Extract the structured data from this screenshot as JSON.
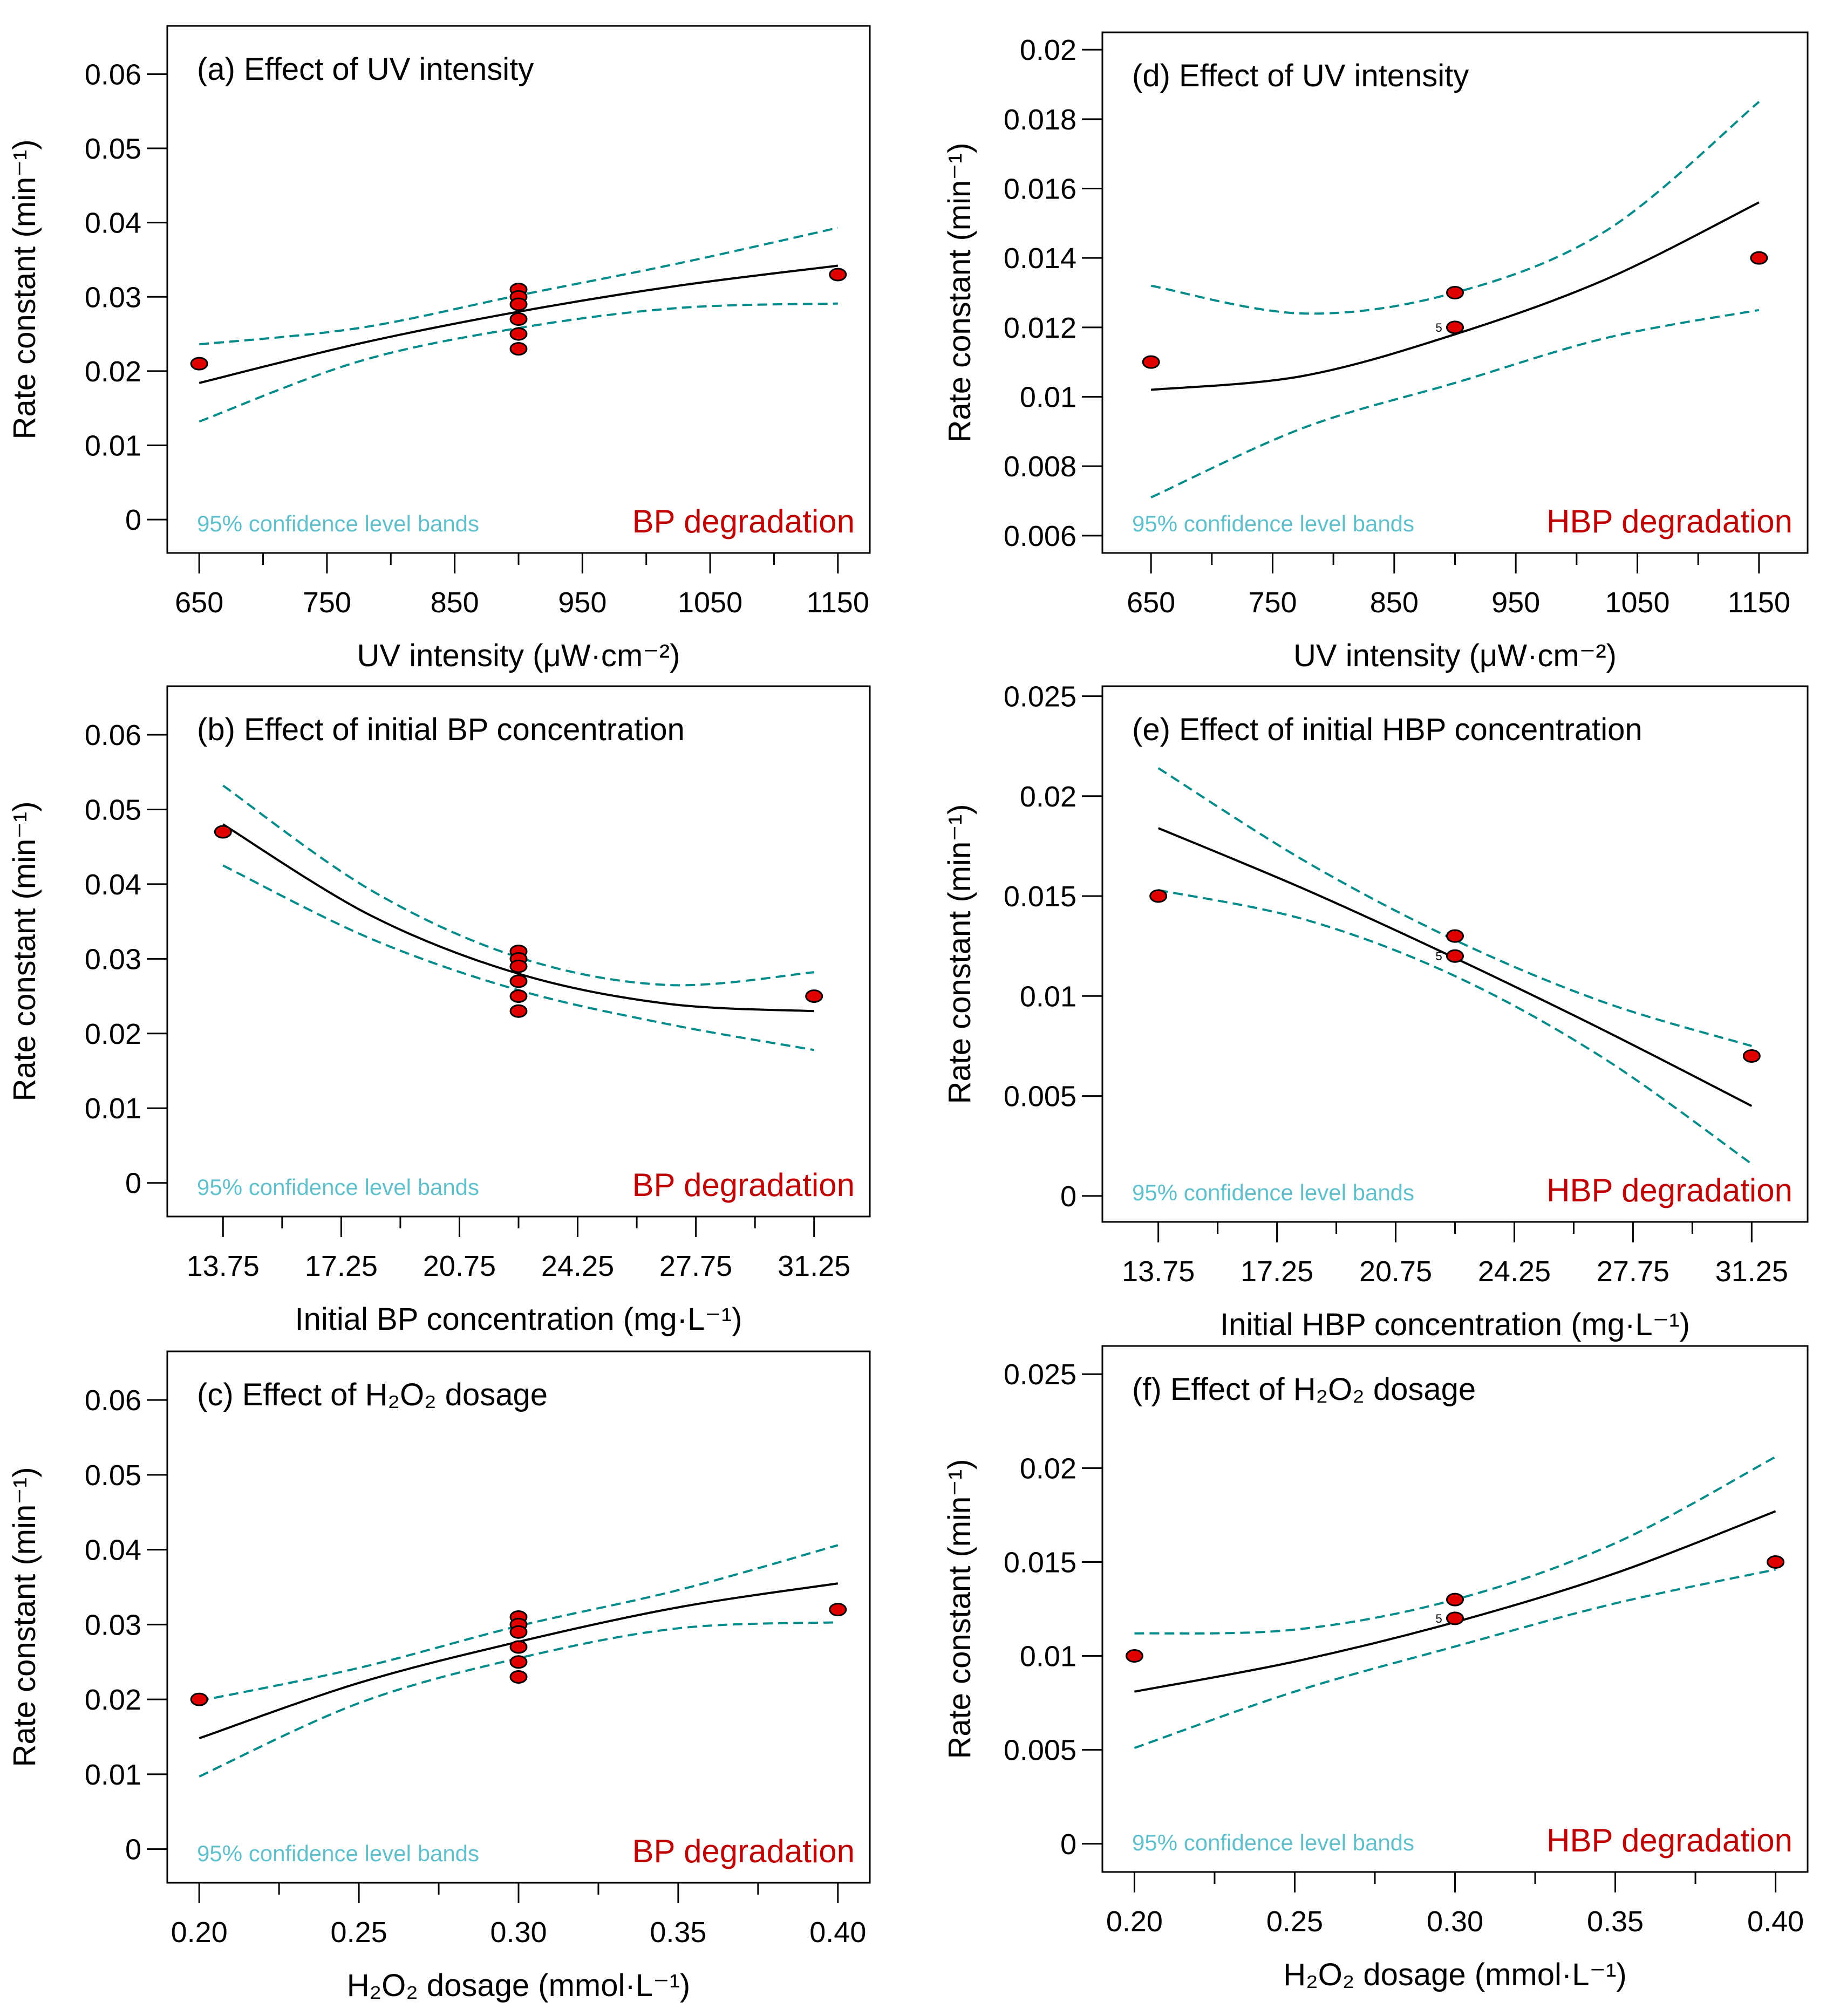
{
  "colors": {
    "fit_line": "#000000",
    "band_line": "#008b8b",
    "band_label": "#5fc0cc",
    "point_fill": "#e00000",
    "degradation_label": "#c00000"
  },
  "chart_data": [
    {
      "id": "a",
      "type": "scatter",
      "title": "(a) Effect of UV intensity",
      "degradation_label": "BP degradation",
      "band_label": "95% confidence level bands",
      "ylabel": "Rate constant (min⁻¹)",
      "xlabel": "UV intensity (μW·cm⁻²)",
      "xlim": [
        625,
        1175
      ],
      "ylim": [
        -0.0045,
        0.0665
      ],
      "xticks": [
        650,
        750,
        850,
        950,
        1050,
        1150
      ],
      "xtick_labels": [
        "650",
        "750",
        "850",
        "950",
        "1050",
        "1150"
      ],
      "yticks": [
        0,
        0.01,
        0.02,
        0.03,
        0.04,
        0.05,
        0.06
      ],
      "ytick_labels": [
        "0",
        "0.01",
        "0.02",
        "0.03",
        "0.04",
        "0.05",
        "0.06"
      ],
      "points": [
        [
          650,
          0.021
        ],
        [
          900,
          0.031
        ],
        [
          900,
          0.03
        ],
        [
          900,
          0.029
        ],
        [
          900,
          0.027
        ],
        [
          900,
          0.025
        ],
        [
          900,
          0.023
        ],
        [
          1150,
          0.033
        ]
      ],
      "fit": [
        [
          650,
          0.0184
        ],
        [
          775,
          0.0237
        ],
        [
          900,
          0.028
        ],
        [
          1025,
          0.0315
        ],
        [
          1150,
          0.0342
        ]
      ],
      "upper": [
        [
          650,
          0.0236
        ],
        [
          775,
          0.0258
        ],
        [
          900,
          0.0302
        ],
        [
          1025,
          0.0345
        ],
        [
          1150,
          0.0393
        ]
      ],
      "lower": [
        [
          650,
          0.0132
        ],
        [
          775,
          0.0213
        ],
        [
          900,
          0.0258
        ],
        [
          1025,
          0.0285
        ],
        [
          1150,
          0.0291
        ]
      ]
    },
    {
      "id": "b",
      "type": "scatter",
      "title": "(b) Effect of initial BP concentration",
      "degradation_label": "BP degradation",
      "band_label": "95% confidence level bands",
      "ylabel": "Rate constant (min⁻¹)",
      "xlabel": "Initial BP concentration (mg·L⁻¹)",
      "xlim": [
        12.1,
        32.9
      ],
      "ylim": [
        -0.0045,
        0.0665
      ],
      "xticks": [
        13.75,
        17.25,
        20.75,
        24.25,
        27.75,
        31.25
      ],
      "xtick_labels": [
        "13.75",
        "17.25",
        "20.75",
        "24.25",
        "27.75",
        "31.25"
      ],
      "yticks": [
        0,
        0.01,
        0.02,
        0.03,
        0.04,
        0.05,
        0.06
      ],
      "ytick_labels": [
        "0",
        "0.01",
        "0.02",
        "0.03",
        "0.04",
        "0.05",
        "0.06"
      ],
      "points": [
        [
          13.75,
          0.047
        ],
        [
          22.5,
          0.031
        ],
        [
          22.5,
          0.03
        ],
        [
          22.5,
          0.029
        ],
        [
          22.5,
          0.027
        ],
        [
          22.5,
          0.025
        ],
        [
          22.5,
          0.023
        ],
        [
          31.25,
          0.025
        ]
      ],
      "fit": [
        [
          13.75,
          0.048
        ],
        [
          18.125,
          0.0358
        ],
        [
          22.5,
          0.028
        ],
        [
          26.875,
          0.024
        ],
        [
          31.25,
          0.023
        ]
      ],
      "upper": [
        [
          13.75,
          0.0532
        ],
        [
          18.125,
          0.0392
        ],
        [
          22.5,
          0.0302
        ],
        [
          26.875,
          0.0265
        ],
        [
          31.25,
          0.0282
        ]
      ],
      "lower": [
        [
          13.75,
          0.0425
        ],
        [
          18.125,
          0.0327
        ],
        [
          22.5,
          0.0258
        ],
        [
          26.875,
          0.0213
        ],
        [
          31.25,
          0.0178
        ]
      ]
    },
    {
      "id": "c",
      "type": "scatter",
      "title": "(c) Effect of H₂O₂ dosage",
      "degradation_label": "BP degradation",
      "band_label": "95% confidence level bands",
      "ylabel": "Rate constant (min⁻¹)",
      "xlabel": "H₂O₂ dosage (mmol·L⁻¹)",
      "xlim": [
        0.19,
        0.41
      ],
      "ylim": [
        -0.0045,
        0.0665
      ],
      "xticks": [
        0.2,
        0.25,
        0.3,
        0.35,
        0.4
      ],
      "xtick_labels": [
        "0.20",
        "0.25",
        "0.30",
        "0.35",
        "0.40"
      ],
      "yticks": [
        0,
        0.01,
        0.02,
        0.03,
        0.04,
        0.05,
        0.06
      ],
      "ytick_labels": [
        "0",
        "0.01",
        "0.02",
        "0.03",
        "0.04",
        "0.05",
        "0.06"
      ],
      "points": [
        [
          0.2,
          0.02
        ],
        [
          0.3,
          0.031
        ],
        [
          0.3,
          0.03
        ],
        [
          0.3,
          0.029
        ],
        [
          0.3,
          0.027
        ],
        [
          0.3,
          0.025
        ],
        [
          0.3,
          0.023
        ],
        [
          0.4,
          0.032
        ]
      ],
      "fit": [
        [
          0.2,
          0.0148
        ],
        [
          0.25,
          0.0222
        ],
        [
          0.3,
          0.0277
        ],
        [
          0.35,
          0.0323
        ],
        [
          0.4,
          0.0355
        ]
      ],
      "upper": [
        [
          0.2,
          0.0198
        ],
        [
          0.25,
          0.0242
        ],
        [
          0.3,
          0.0298
        ],
        [
          0.35,
          0.0346
        ],
        [
          0.4,
          0.0406
        ]
      ],
      "lower": [
        [
          0.2,
          0.0097
        ],
        [
          0.25,
          0.0195
        ],
        [
          0.3,
          0.0255
        ],
        [
          0.35,
          0.0295
        ],
        [
          0.4,
          0.0303
        ]
      ]
    },
    {
      "id": "d",
      "type": "scatter",
      "title": "(d) Effect of UV intensity",
      "degradation_label": "HBP degradation",
      "band_label": "95% confidence level bands",
      "ylabel": "Rate constant (min⁻¹)",
      "xlabel": "UV intensity (μW·cm⁻²)",
      "xlim": [
        610,
        1190
      ],
      "ylim": [
        0.0055,
        0.0205
      ],
      "xticks": [
        650,
        750,
        850,
        950,
        1050,
        1150
      ],
      "xtick_labels": [
        "650",
        "750",
        "850",
        "950",
        "1050",
        "1150"
      ],
      "yticks": [
        0.006,
        0.008,
        0.01,
        0.012,
        0.014,
        0.016,
        0.018,
        0.02
      ],
      "ytick_labels": [
        "0.006",
        "0.008",
        "0.01",
        "0.012",
        "0.014",
        "0.016",
        "0.018",
        "0.02"
      ],
      "points": [
        [
          650,
          0.011
        ],
        [
          900,
          0.013
        ],
        [
          900,
          0.012
        ],
        [
          1150,
          0.014
        ]
      ],
      "point_annotation": {
        "x": 900,
        "y": 0.012,
        "text": "5"
      },
      "fit": [
        [
          650,
          0.0102
        ],
        [
          775,
          0.0106
        ],
        [
          900,
          0.0118
        ],
        [
          1025,
          0.0134
        ],
        [
          1150,
          0.0156
        ]
      ],
      "upper": [
        [
          650,
          0.0132
        ],
        [
          775,
          0.0124
        ],
        [
          900,
          0.013
        ],
        [
          1025,
          0.0148
        ],
        [
          1150,
          0.0185
        ]
      ],
      "lower": [
        [
          650,
          0.0071
        ],
        [
          775,
          0.0091
        ],
        [
          900,
          0.0104
        ],
        [
          1025,
          0.0117
        ],
        [
          1150,
          0.0125
        ]
      ]
    },
    {
      "id": "e",
      "type": "scatter",
      "title": "(e) Effect of initial HBP concentration",
      "degradation_label": "HBP degradation",
      "band_label": "95% confidence level bands",
      "ylabel": "Rate constant (min⁻¹)",
      "xlabel": "Initial HBP concentration (mg·L⁻¹)",
      "xlim": [
        12.1,
        32.9
      ],
      "ylim": [
        -0.0013,
        0.0255
      ],
      "xticks": [
        13.75,
        17.25,
        20.75,
        24.25,
        27.75,
        31.25
      ],
      "xtick_labels": [
        "13.75",
        "17.25",
        "20.75",
        "24.25",
        "27.75",
        "31.25"
      ],
      "yticks": [
        0,
        0.005,
        0.01,
        0.015,
        0.02,
        0.025
      ],
      "ytick_labels": [
        "0",
        "0.005",
        "0.01",
        "0.015",
        "0.02",
        "0.025"
      ],
      "points": [
        [
          13.75,
          0.015
        ],
        [
          22.5,
          0.013
        ],
        [
          22.5,
          0.012
        ],
        [
          31.25,
          0.007
        ]
      ],
      "point_annotation": {
        "x": 22.5,
        "y": 0.012,
        "text": "5"
      },
      "fit": [
        [
          13.75,
          0.0184
        ],
        [
          18.125,
          0.0153
        ],
        [
          22.5,
          0.0119
        ],
        [
          26.875,
          0.0083
        ],
        [
          31.25,
          0.0045
        ]
      ],
      "upper": [
        [
          13.75,
          0.0214
        ],
        [
          18.125,
          0.0167
        ],
        [
          22.5,
          0.0128
        ],
        [
          26.875,
          0.0097
        ],
        [
          31.25,
          0.0075
        ]
      ],
      "lower": [
        [
          13.75,
          0.0153
        ],
        [
          18.125,
          0.0138
        ],
        [
          22.5,
          0.011
        ],
        [
          26.875,
          0.0069
        ],
        [
          31.25,
          0.0016
        ]
      ]
    },
    {
      "id": "f",
      "type": "scatter",
      "title": "(f) Effect of H₂O₂ dosage",
      "degradation_label": "HBP degradation",
      "band_label": "95% confidence level bands",
      "ylabel": "Rate constant (min⁻¹)",
      "xlabel": "H₂O₂ dosage (mmol·L⁻¹)",
      "xlim": [
        0.19,
        0.41
      ],
      "ylim": [
        -0.0015,
        0.0265
      ],
      "xticks": [
        0.2,
        0.25,
        0.3,
        0.35,
        0.4
      ],
      "xtick_labels": [
        "0.20",
        "0.25",
        "0.30",
        "0.35",
        "0.40"
      ],
      "yticks": [
        0,
        0.005,
        0.01,
        0.015,
        0.02,
        0.025
      ],
      "ytick_labels": [
        "0",
        "0.005",
        "0.01",
        "0.015",
        "0.02",
        "0.025"
      ],
      "points": [
        [
          0.2,
          0.01
        ],
        [
          0.3,
          0.013
        ],
        [
          0.3,
          0.012
        ],
        [
          0.4,
          0.015
        ]
      ],
      "point_annotation": {
        "x": 0.3,
        "y": 0.012,
        "text": "5"
      },
      "fit": [
        [
          0.2,
          0.0081
        ],
        [
          0.25,
          0.0097
        ],
        [
          0.3,
          0.0118
        ],
        [
          0.35,
          0.0144
        ],
        [
          0.4,
          0.0177
        ]
      ],
      "upper": [
        [
          0.2,
          0.0112
        ],
        [
          0.25,
          0.0114
        ],
        [
          0.3,
          0.013
        ],
        [
          0.35,
          0.016
        ],
        [
          0.4,
          0.0206
        ]
      ],
      "lower": [
        [
          0.2,
          0.0051
        ],
        [
          0.25,
          0.0081
        ],
        [
          0.3,
          0.0105
        ],
        [
          0.35,
          0.0128
        ],
        [
          0.4,
          0.0146
        ]
      ]
    }
  ]
}
